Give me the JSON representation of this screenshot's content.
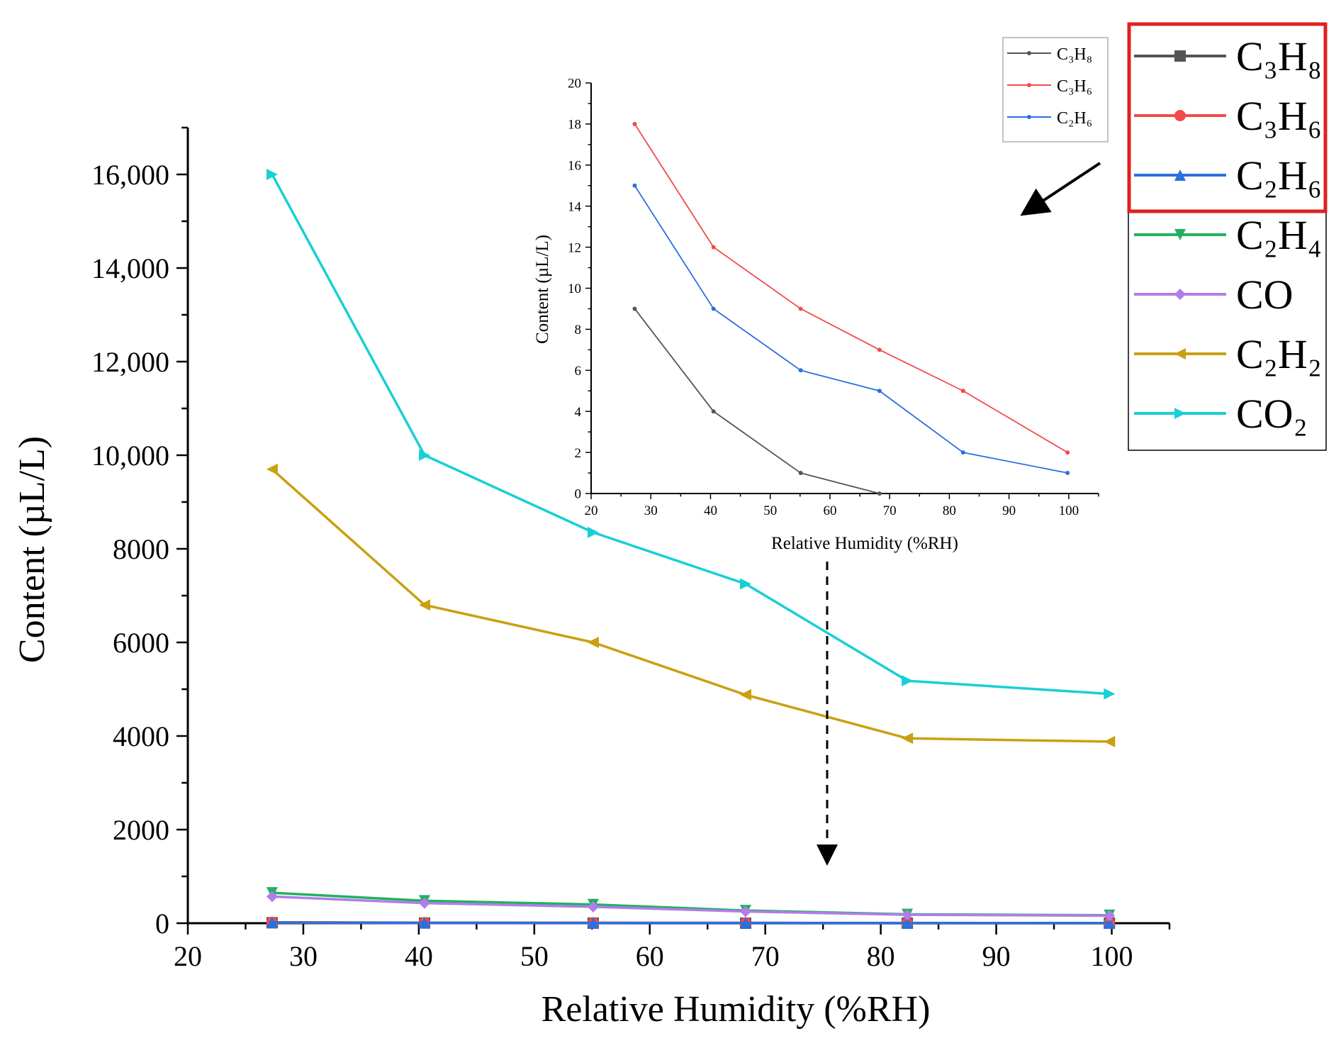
{
  "colors": {
    "C3H8": "#555555",
    "C3H6": "#f24a4a",
    "C2H6": "#2a70e0",
    "C2H4": "#22b060",
    "CO": "#b07ee8",
    "C2H2": "#c9a010",
    "CO2": "#19cfd6",
    "highlight_box": "#e02020",
    "axis": "#000000"
  },
  "chart_data": [
    {
      "id": "main",
      "type": "line",
      "xlabel": "Relative Humidity (%RH)",
      "ylabel": "Content (µL/L)",
      "xlim": [
        20,
        105
      ],
      "ylim": [
        0,
        17000
      ],
      "xticks": [
        20,
        30,
        40,
        50,
        60,
        70,
        80,
        90,
        100
      ],
      "yticks": [
        0,
        2000,
        4000,
        6000,
        8000,
        10000,
        12000,
        14000,
        16000
      ],
      "ytick_labels": [
        "0",
        "2000",
        "4000",
        "6000",
        "8000",
        "10,000",
        "12,000",
        "14,000",
        "16,000"
      ],
      "x": [
        27.3,
        40.5,
        55.1,
        68.3,
        82.3,
        99.8
      ],
      "series": [
        {
          "name": "C3H8",
          "label": "C₃H₈",
          "marker": "square",
          "values": [
            9,
            4,
            1,
            0,
            0,
            0
          ]
        },
        {
          "name": "C3H6",
          "label": "C₃H₆",
          "marker": "circle",
          "values": [
            18,
            12,
            9,
            7,
            5,
            2
          ]
        },
        {
          "name": "C2H6",
          "label": "C₂H₆",
          "marker": "triangle-up",
          "values": [
            15,
            9,
            6,
            5,
            2,
            1
          ]
        },
        {
          "name": "C2H4",
          "label": "C₂H₄",
          "marker": "triangle-down",
          "values": [
            650,
            480,
            400,
            270,
            190,
            170
          ]
        },
        {
          "name": "CO",
          "label": "CO",
          "marker": "diamond",
          "values": [
            570,
            430,
            350,
            250,
            180,
            160
          ]
        },
        {
          "name": "C2H2",
          "label": "C₂H₂",
          "marker": "triangle-left",
          "values": [
            9700,
            6800,
            6000,
            4880,
            3950,
            3880
          ]
        },
        {
          "name": "CO2",
          "label": "CO₂",
          "marker": "triangle-right",
          "values": [
            16000,
            10000,
            8350,
            7250,
            5180,
            4900
          ]
        }
      ],
      "legend": "right"
    },
    {
      "id": "inset",
      "type": "line",
      "xlabel": "Relative Humidity (%RH)",
      "ylabel": "Content (µL/L)",
      "xlim": [
        20,
        105
      ],
      "ylim": [
        0,
        20
      ],
      "xticks": [
        20,
        30,
        40,
        50,
        60,
        70,
        80,
        90,
        100
      ],
      "yticks": [
        0,
        2,
        4,
        6,
        8,
        10,
        12,
        14,
        16,
        18,
        20
      ],
      "x": [
        27.3,
        40.5,
        55.1,
        68.3,
        82.3,
        99.8
      ],
      "series": [
        {
          "name": "C3H8",
          "label": "C₃H₈",
          "values": [
            9,
            4,
            1,
            0,
            null,
            null
          ]
        },
        {
          "name": "C3H6",
          "label": "C₃H₆",
          "values": [
            18,
            12,
            9,
            7,
            5,
            2
          ]
        },
        {
          "name": "C2H6",
          "label": "C₂H₆",
          "values": [
            15,
            9,
            6,
            5,
            2,
            1
          ]
        }
      ],
      "legend": "top-left outside"
    }
  ]
}
